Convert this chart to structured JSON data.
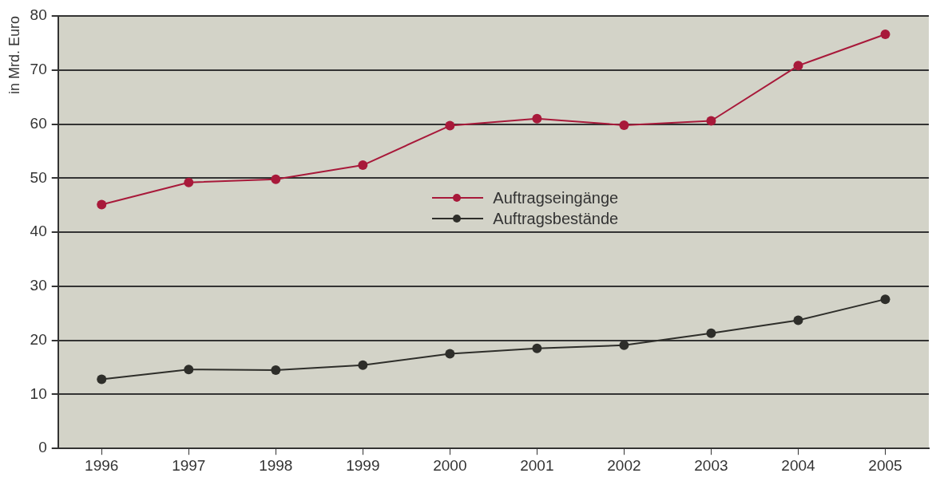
{
  "chart_data": {
    "type": "line",
    "ylabel": "in Mrd. Euro",
    "categories": [
      "1996",
      "1997",
      "1998",
      "1999",
      "2000",
      "2001",
      "2002",
      "2003",
      "2004",
      "2005"
    ],
    "series": [
      {
        "name": "Auftragseingänge",
        "color": "#a8193a",
        "values": [
          45.1,
          49.2,
          49.8,
          52.4,
          59.7,
          61.0,
          59.8,
          60.6,
          70.8,
          76.6
        ]
      },
      {
        "name": "Auftragsbestände",
        "color": "#2e2e2a",
        "values": [
          12.8,
          14.6,
          14.5,
          15.4,
          17.5,
          18.5,
          19.1,
          21.3,
          23.7,
          27.6
        ]
      }
    ],
    "ylim": [
      0,
      80
    ],
    "yticks": [
      0,
      10,
      20,
      30,
      40,
      50,
      60,
      70,
      80
    ],
    "grid": "y",
    "legend": "center",
    "marker": "circle",
    "line_style": "solid"
  }
}
